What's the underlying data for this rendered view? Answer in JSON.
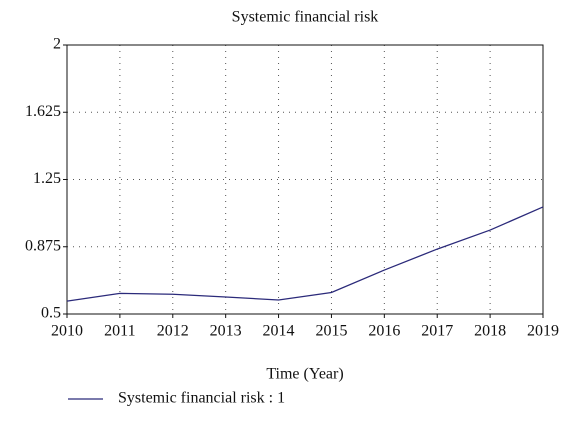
{
  "chart_data": {
    "type": "line",
    "title": "Systemic financial risk",
    "x_label": "Time (Year)",
    "x": [
      2010,
      2011,
      2012,
      2013,
      2014,
      2015,
      2016,
      2017,
      2018,
      2019
    ],
    "series": [
      {
        "name": "Systemic financial risk : 1",
        "color": "#2b2a7a",
        "values": [
          0.572,
          0.615,
          0.61,
          0.595,
          0.578,
          0.62,
          0.745,
          0.862,
          0.968,
          1.097
        ]
      }
    ],
    "xlim": [
      2010,
      2019
    ],
    "xticks": [
      2010,
      2011,
      2012,
      2013,
      2014,
      2015,
      2016,
      2017,
      2018,
      2019
    ],
    "ylim": [
      0.5,
      2
    ],
    "yticks": [
      0.5,
      0.875,
      1.25,
      1.625,
      2
    ],
    "grid": true,
    "legend": "bottom"
  }
}
